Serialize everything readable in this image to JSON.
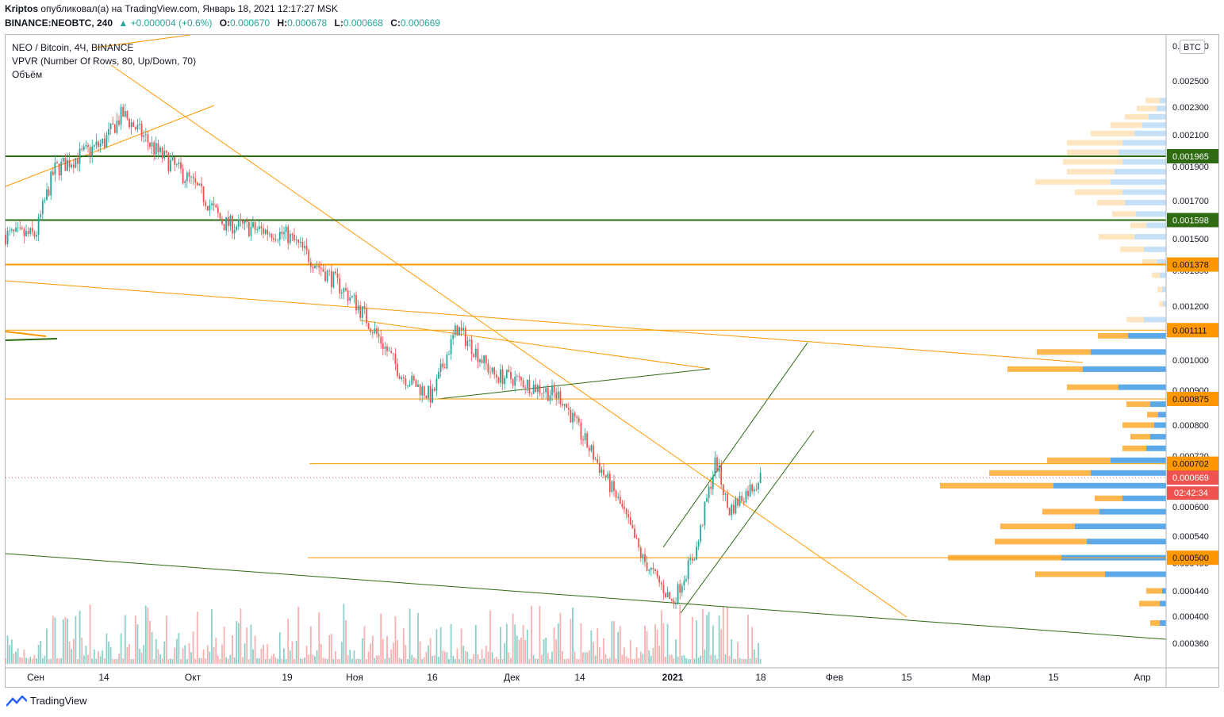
{
  "header": {
    "author": "Kriptos",
    "published_text": "опубликовал(а) на TradingView.com, Январь 18, 2021 12:17:27 MSK",
    "symbol": "BINANCE:NEOBTC, 240",
    "change": "▲ +0.000004 (+0.6%)",
    "o_label": "O:",
    "o_value": "0.000670",
    "h_label": "H:",
    "h_value": "0.000678",
    "l_label": "L:",
    "l_value": "0.000668",
    "c_label": "C:",
    "c_value": "0.000669"
  },
  "legend": {
    "title": "NEO / Bitcoin, 4Ч, BINANCE",
    "indicator": "VPVR (Number Of Rows, 80, Up/Down, 70)",
    "volume": "Объём"
  },
  "currency_badge": "BTC",
  "footer": {
    "brand": "TradingView"
  },
  "colors": {
    "up": "#26a69a",
    "down": "#ef5350",
    "orange": "#ff9800",
    "green_line": "#2e6b12",
    "vp_blue": "#5ba9e9",
    "vp_orange": "#ffb74d",
    "current_price": "#ef5350"
  },
  "chart_data": {
    "type": "candlestick",
    "title": "NEO / Bitcoin, 4Ч, BINANCE",
    "ylim": [
      0.00032,
      0.00275
    ],
    "y_ticks": [
      "0.002500",
      "0.002300",
      "0.002100",
      "0.001900",
      "0.001700",
      "0.001500",
      "0.001350",
      "0.001200",
      "0.001000",
      "0.000900",
      "0.000800",
      "0.000720",
      "0.000600",
      "0.000540",
      "0.000490",
      "0.000440",
      "0.000400",
      "0.000360"
    ],
    "x_ticks": [
      "Сен",
      "14",
      "Окт",
      "19",
      "Ноя",
      "16",
      "Дек",
      "14",
      "2021",
      "18",
      "Фев",
      "15",
      "Мар",
      "15",
      "Апр"
    ],
    "price_path": [
      [
        "Сен",
        0.00152
      ],
      [
        "Сен+3",
        0.00188
      ],
      [
        "14",
        0.00205
      ],
      [
        "14+3",
        0.00225
      ],
      [
        "Окт-6",
        0.002
      ],
      [
        "Окт",
        0.0018
      ],
      [
        "Окт+5",
        0.00158
      ],
      [
        "19",
        0.00152
      ],
      [
        "19+4",
        0.0014
      ],
      [
        "Ноя",
        0.00122
      ],
      [
        "Ноя+4",
        0.00108
      ],
      [
        "16-5",
        0.00095
      ],
      [
        "16",
        0.00088
      ],
      [
        "16+4",
        0.00112
      ],
      [
        "Дек-3",
        0.00095
      ],
      [
        "Дек",
        0.00094
      ],
      [
        "14-3",
        0.00088
      ],
      [
        "14",
        0.00078
      ],
      [
        "14+6",
        0.00062
      ],
      [
        "2021-5",
        0.0005
      ],
      [
        "2021",
        0.00042
      ],
      [
        "2021+4",
        0.00052
      ],
      [
        "2021+7",
        0.00071
      ],
      [
        "2021+9",
        0.00059
      ],
      [
        "18",
        0.000669
      ]
    ],
    "price_labels": [
      {
        "value": "0.001965",
        "color": "#2e6b12"
      },
      {
        "value": "0.001598",
        "color": "#2e6b12"
      },
      {
        "value": "0.001378",
        "color": "#ff9800"
      },
      {
        "value": "0.001111",
        "color": "#ff9800"
      },
      {
        "value": "0.000875",
        "color": "#ff9800"
      },
      {
        "value": "0.000702",
        "color": "#ff9800"
      },
      {
        "value": "0.000669",
        "color": "#ef5350"
      },
      {
        "value": "0.000500",
        "color": "#ff9800"
      }
    ],
    "countdown": "02:42:34",
    "horizontal_levels": [
      0.001965,
      0.001598,
      0.001378,
      0.001111,
      0.000875,
      0.000702,
      0.0005
    ],
    "volume_profile": {
      "rows": [
        {
          "p": 0.00235,
          "up": 18,
          "down": 8
        },
        {
          "p": 0.00229,
          "up": 25,
          "down": 12
        },
        {
          "p": 0.00223,
          "up": 30,
          "down": 22
        },
        {
          "p": 0.00217,
          "up": 40,
          "down": 30
        },
        {
          "p": 0.00211,
          "up": 55,
          "down": 40
        },
        {
          "p": 0.00205,
          "up": 70,
          "down": 55
        },
        {
          "p": 0.00199,
          "up": 65,
          "down": 60
        },
        {
          "p": 0.00193,
          "up": 75,
          "down": 55
        },
        {
          "p": 0.00187,
          "up": 60,
          "down": 65
        },
        {
          "p": 0.00181,
          "up": 95,
          "down": 70
        },
        {
          "p": 0.00175,
          "up": 60,
          "down": 55
        },
        {
          "p": 0.00169,
          "up": 35,
          "down": 52
        },
        {
          "p": 0.00163,
          "up": 30,
          "down": 38
        },
        {
          "p": 0.00157,
          "up": 20,
          "down": 25
        },
        {
          "p": 0.00151,
          "up": 45,
          "down": 40
        },
        {
          "p": 0.00145,
          "up": 30,
          "down": 28
        },
        {
          "p": 0.00139,
          "up": 18,
          "down": 12
        },
        {
          "p": 0.00133,
          "up": 10,
          "down": 8
        },
        {
          "p": 0.00127,
          "up": 6,
          "down": 5
        },
        {
          "p": 0.00121,
          "up": 5,
          "down": 4
        },
        {
          "p": 0.00115,
          "up": 22,
          "down": 28
        },
        {
          "p": 0.00109,
          "up": 38,
          "down": 48
        },
        {
          "p": 0.00103,
          "up": 68,
          "down": 95
        },
        {
          "p": 0.00097,
          "up": 95,
          "down": 105
        },
        {
          "p": 0.00091,
          "up": 65,
          "down": 60
        },
        {
          "p": 0.00086,
          "up": 30,
          "down": 20
        },
        {
          "p": 0.00083,
          "up": 14,
          "down": 10
        },
        {
          "p": 0.0008,
          "up": 40,
          "down": 15
        },
        {
          "p": 0.00077,
          "up": 25,
          "down": 20
        },
        {
          "p": 0.00074,
          "up": 30,
          "down": 25
        },
        {
          "p": 0.00071,
          "up": 80,
          "down": 70
        },
        {
          "p": 0.00068,
          "up": 128,
          "down": 95
        },
        {
          "p": 0.00065,
          "up": 143,
          "down": 142
        },
        {
          "p": 0.00062,
          "up": 35,
          "down": 55
        },
        {
          "p": 0.00059,
          "up": 72,
          "down": 84
        },
        {
          "p": 0.00056,
          "up": 94,
          "down": 115
        },
        {
          "p": 0.00053,
          "up": 116,
          "down": 100
        },
        {
          "p": 0.0005,
          "up": 143,
          "down": 132
        },
        {
          "p": 0.00047,
          "up": 88,
          "down": 77
        },
        {
          "p": 0.00044,
          "up": 20,
          "down": 5
        },
        {
          "p": 0.00042,
          "up": 26,
          "down": 8
        },
        {
          "p": 0.00039,
          "up": 12,
          "down": 8
        }
      ]
    }
  }
}
